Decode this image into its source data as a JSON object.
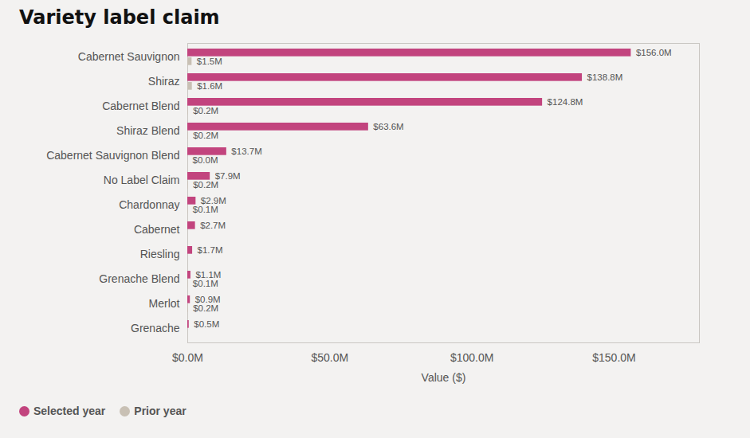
{
  "chart_data": {
    "type": "bar",
    "orientation": "horizontal",
    "title": "Variety label claim",
    "xlabel": "Value ($)",
    "categories": [
      "Cabernet Sauvignon",
      "Shiraz",
      "Cabernet Blend",
      "Shiraz Blend",
      "Cabernet Sauvignon Blend",
      "No Label Claim",
      "Chardonnay",
      "Cabernet",
      "Riesling",
      "Grenache Blend",
      "Merlot",
      "Grenache"
    ],
    "series": [
      {
        "name": "Selected year",
        "color": "#c2447e",
        "values": [
          156000000,
          138800000,
          124800000,
          63600000,
          13700000,
          7900000,
          2900000,
          2700000,
          1700000,
          1100000,
          900000,
          500000
        ],
        "value_labels": [
          "$156.0M",
          "$138.8M",
          "$124.8M",
          "$63.6M",
          "$13.7M",
          "$7.9M",
          "$2.9M",
          "$2.7M",
          "$1.7M",
          "$1.1M",
          "$0.9M",
          "$0.5M"
        ]
      },
      {
        "name": "Prior year",
        "color": "#c8c0b4",
        "values": [
          1500000,
          1600000,
          200000,
          200000,
          0,
          200000,
          100000,
          null,
          null,
          100000,
          200000,
          null
        ],
        "value_labels": [
          "$1.5M",
          "$1.6M",
          "$0.2M",
          "$0.2M",
          "$0.0M",
          "$0.2M",
          "$0.1M",
          null,
          null,
          "$0.1M",
          "$0.2M",
          null
        ]
      }
    ],
    "xlim": [
      0,
      180000000
    ],
    "xticks": [
      {
        "value": 0,
        "label": "$0.0M"
      },
      {
        "value": 50000000,
        "label": "$50.0M"
      },
      {
        "value": 100000000,
        "label": "$100.0M"
      },
      {
        "value": 150000000,
        "label": "$150.0M"
      }
    ],
    "data_labels": true,
    "grid": false,
    "legend": "bottom-left"
  }
}
